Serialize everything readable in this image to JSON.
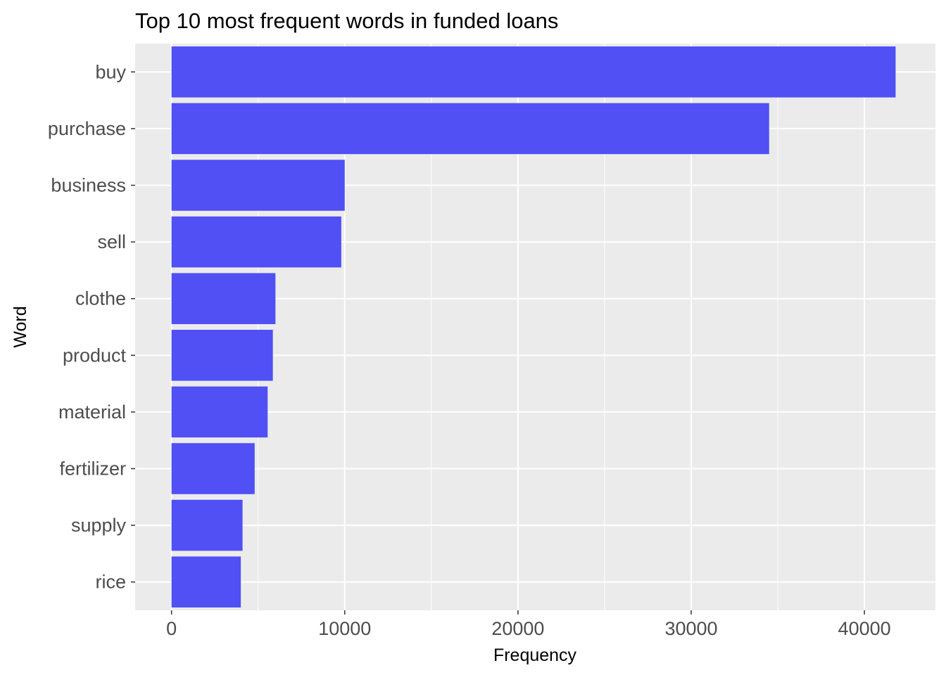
{
  "chart_data": {
    "type": "bar",
    "orientation": "horizontal",
    "title": "Top 10 most frequent words in funded loans",
    "xlabel": "Frequency",
    "ylabel": "Word",
    "categories": [
      "buy",
      "purchase",
      "business",
      "sell",
      "clothe",
      "product",
      "material",
      "fertilizer",
      "supply",
      "rice"
    ],
    "values": [
      41800,
      34500,
      10000,
      9800,
      6000,
      5850,
      5550,
      4800,
      4100,
      4000
    ],
    "xlim": [
      -2100,
      44100
    ],
    "x_ticks": [
      0,
      10000,
      20000,
      30000,
      40000
    ],
    "x_tick_labels": [
      "0",
      "10000",
      "20000",
      "30000",
      "40000"
    ],
    "grid": true,
    "legend": "none",
    "colors": {
      "bar": "#5050f5",
      "panel_background": "#ebebeb",
      "grid": "#ffffff",
      "tick_text": "#4d4d4d"
    }
  }
}
